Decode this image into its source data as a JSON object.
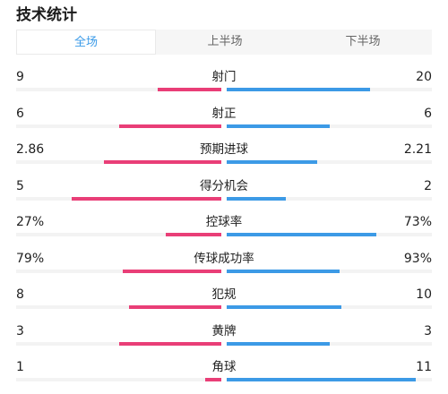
{
  "title": "技术统计",
  "tabs": [
    {
      "label": "全场",
      "active": true
    },
    {
      "label": "上半场",
      "active": false
    },
    {
      "label": "下半场",
      "active": false
    }
  ],
  "colors": {
    "home": "#e93e77",
    "away": "#3c9ae6",
    "accent": "#3a9ae8"
  },
  "stats": [
    {
      "label": "射门",
      "left": "9",
      "right": "20",
      "left_fraction": 0.31,
      "right_fraction": 0.7
    },
    {
      "label": "射正",
      "left": "6",
      "right": "6",
      "left_fraction": 0.5,
      "right_fraction": 0.5
    },
    {
      "label": "预期进球",
      "left": "2.86",
      "right": "2.21",
      "left_fraction": 0.57,
      "right_fraction": 0.44
    },
    {
      "label": "得分机会",
      "left": "5",
      "right": "2",
      "left_fraction": 0.73,
      "right_fraction": 0.29
    },
    {
      "label": "控球率",
      "left": "27%",
      "right": "73%",
      "left_fraction": 0.27,
      "right_fraction": 0.73
    },
    {
      "label": "传球成功率",
      "left": "79%",
      "right": "93%",
      "left_fraction": 0.48,
      "right_fraction": 0.55
    },
    {
      "label": "犯规",
      "left": "8",
      "right": "10",
      "left_fraction": 0.45,
      "right_fraction": 0.56
    },
    {
      "label": "黄牌",
      "left": "3",
      "right": "3",
      "left_fraction": 0.5,
      "right_fraction": 0.5
    },
    {
      "label": "角球",
      "left": "1",
      "right": "11",
      "left_fraction": 0.08,
      "right_fraction": 0.92
    }
  ]
}
